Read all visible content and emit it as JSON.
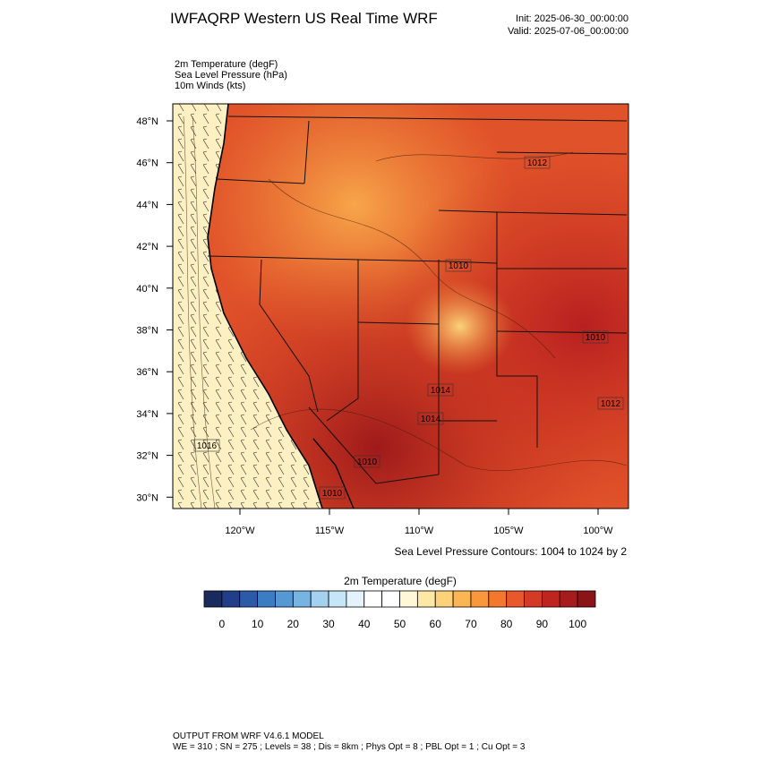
{
  "title": "IWFAQRP Western US Real Time WRF",
  "init": "Init: 2025-06-30_00:00:00",
  "valid": "Valid: 2025-07-06_00:00:00",
  "fields": [
    "2m Temperature   (degF)",
    "Sea Level Pressure   (hPa)",
    "10m Winds   (kts)"
  ],
  "map": {
    "lat_labels": [
      "48°N",
      "46°N",
      "44°N",
      "42°N",
      "40°N",
      "38°N",
      "36°N",
      "34°N",
      "32°N",
      "30°N"
    ],
    "lon_labels": [
      "120°W",
      "115°W",
      "110°W",
      "105°W",
      "100°W"
    ],
    "contour_labels": [
      "1016",
      "1014",
      "1010",
      "1014",
      "1010",
      "1010",
      "1012",
      "1010",
      "1012"
    ]
  },
  "contour_note": "Sea Level Pressure Contours: 1004 to 1024 by 2",
  "colorbar": {
    "title": "2m Temperature  (degF)",
    "colors": [
      "#1b2a5c",
      "#203f88",
      "#2b5ba8",
      "#3b7cc3",
      "#5698d4",
      "#78b4e2",
      "#a3d1ef",
      "#c6e5f6",
      "#e4f3fb",
      "#ffffff",
      "#ffffff",
      "#fff7d6",
      "#fde8a6",
      "#fcd179",
      "#fbb552",
      "#f8973b",
      "#f3782e",
      "#e8582a",
      "#d43a25",
      "#c0241f",
      "#a61b1c",
      "#8a1417"
    ],
    "ticks": [
      0,
      10,
      20,
      30,
      40,
      50,
      60,
      70,
      80,
      90,
      100
    ]
  },
  "footer": [
    "OUTPUT FROM WRF V4.6.1 MODEL",
    "WE = 310 ; SN = 275 ; Levels = 38 ; Dis = 8km ; Phys Opt = 8 ; PBL Opt = 1 ; Cu Opt = 3"
  ]
}
